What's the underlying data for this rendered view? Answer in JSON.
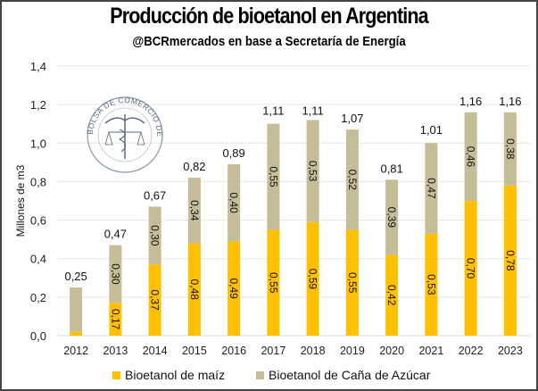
{
  "chart_data": {
    "type": "bar",
    "stacked": true,
    "title": "Producción de bioetanol en Argentina",
    "subtitle": "@BCRmercados en base a Secretaría de Energía",
    "xlabel": "",
    "ylabel": "Millones de m3",
    "ylim": [
      0,
      1.4
    ],
    "yticks": [
      0.0,
      0.2,
      0.4,
      0.6,
      0.8,
      1.0,
      1.2,
      1.4
    ],
    "ytick_labels": [
      "0,0",
      "0,2",
      "0,4",
      "0,6",
      "0,8",
      "1,0",
      "1,2",
      "1,4"
    ],
    "grid": true,
    "legend_position": "bottom",
    "categories": [
      "2012",
      "2013",
      "2014",
      "2015",
      "2016",
      "2017",
      "2018",
      "2019",
      "2020",
      "2021",
      "2022",
      "2023"
    ],
    "series": [
      {
        "name": "Bioetanol de maíz",
        "color": "#FFC000",
        "values": [
          0.02,
          0.17,
          0.37,
          0.48,
          0.49,
          0.55,
          0.59,
          0.55,
          0.42,
          0.53,
          0.7,
          0.78
        ],
        "labels": [
          "",
          "0,17",
          "0,37",
          "0,48",
          "0,49",
          "0,55",
          "0,59",
          "0,55",
          "0,42",
          "0,53",
          "0,70",
          "0,78"
        ]
      },
      {
        "name": "Bioetanol de Caña de Azúcar",
        "color": "#C4BD97",
        "values": [
          0.23,
          0.3,
          0.3,
          0.34,
          0.4,
          0.55,
          0.53,
          0.52,
          0.39,
          0.47,
          0.46,
          0.38
        ],
        "labels": [
          "",
          "0,30",
          "0,30",
          "0,34",
          "0,40",
          "0,55",
          "0,53",
          "0,52",
          "0,39",
          "0,47",
          "0,46",
          "0,38"
        ]
      }
    ],
    "totals": [
      0.25,
      0.47,
      0.67,
      0.82,
      0.89,
      1.11,
      1.11,
      1.07,
      0.81,
      1.01,
      1.16,
      1.16
    ],
    "total_labels": [
      "0,25",
      "0,47",
      "0,67",
      "0,82",
      "0,89",
      "1,11",
      "1,11",
      "1,07",
      "0,81",
      "1,01",
      "1,16",
      "1,16"
    ]
  },
  "watermark": {
    "text": "BOLSA DE COMERCIO DE ROSARIO",
    "icon": "caduceus-scales-seal-icon"
  }
}
